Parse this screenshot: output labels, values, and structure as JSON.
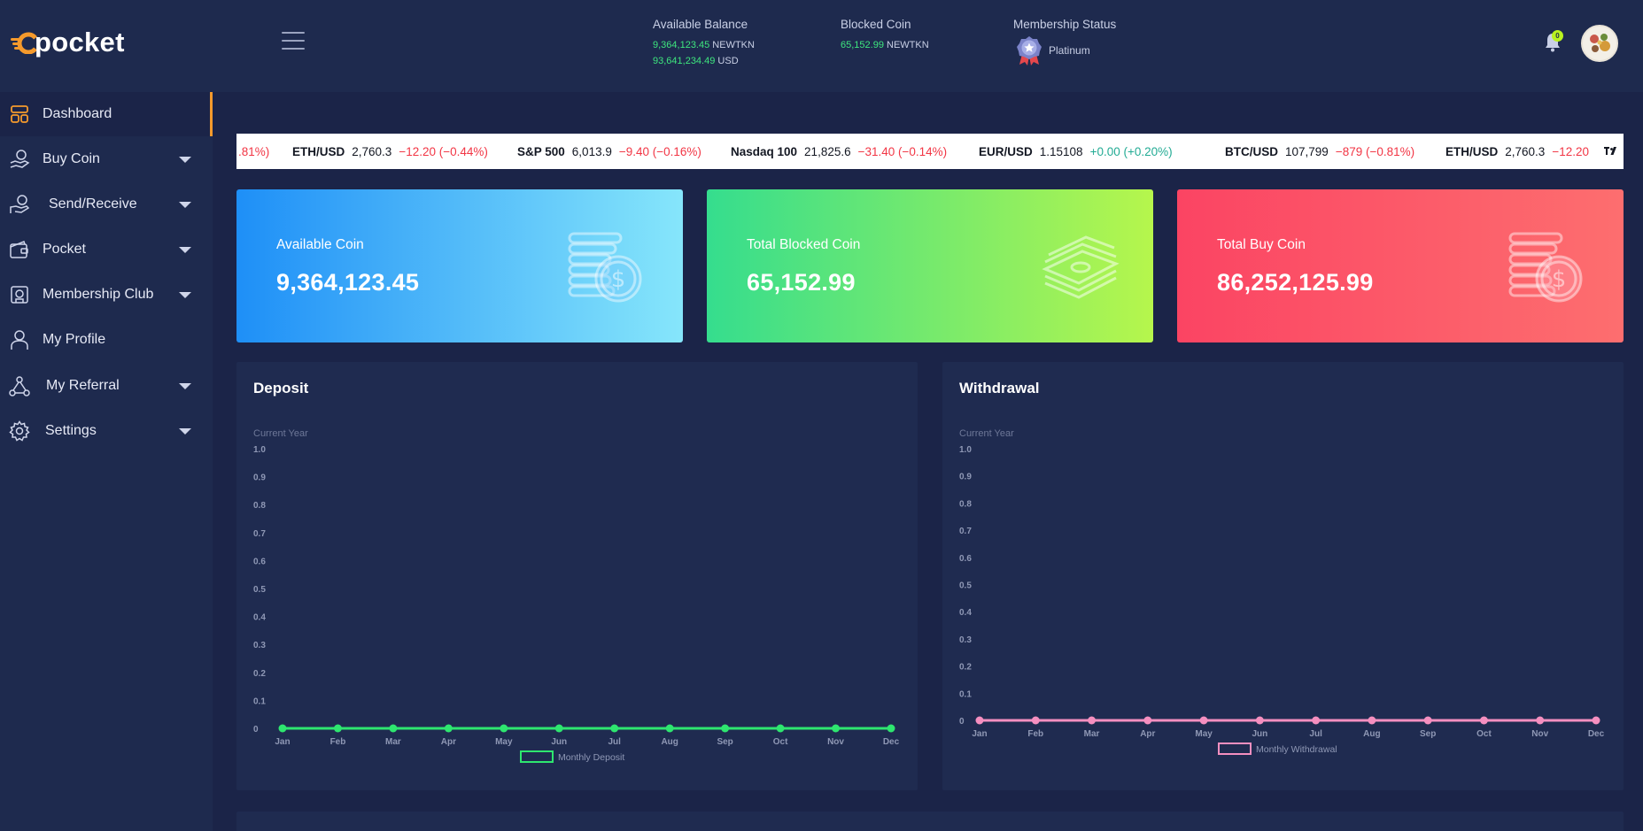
{
  "header": {
    "brand": "pocket",
    "available_balance": {
      "title": "Available Balance",
      "line1_value": "9,364,123.45",
      "line1_unit": "NEWTKN",
      "line2_value": "93,641,234.49",
      "line2_unit": "USD"
    },
    "blocked_coin": {
      "title": "Blocked Coin",
      "value": "65,152.99",
      "unit": "NEWTKN"
    },
    "membership": {
      "title": "Membership Status",
      "level": "Platinum"
    },
    "notification_count": "0"
  },
  "sidebar": {
    "items": [
      {
        "label": "Dashboard",
        "icon": "dashboard-icon",
        "has_caret": false,
        "active": true
      },
      {
        "label": "Buy Coin",
        "icon": "buy-coin-icon",
        "has_caret": true
      },
      {
        "label": "Send/Receive",
        "icon": "send-receive-icon",
        "has_caret": true
      },
      {
        "label": "Pocket",
        "icon": "wallet-icon",
        "has_caret": true
      },
      {
        "label": "Membership Club",
        "icon": "membership-icon",
        "has_caret": true
      },
      {
        "label": "My Profile",
        "icon": "user-icon",
        "has_caret": false
      },
      {
        "label": "My Referral",
        "icon": "referral-icon",
        "has_caret": true
      },
      {
        "label": "Settings",
        "icon": "settings-icon",
        "has_caret": true
      }
    ]
  },
  "ticker": {
    "items": [
      {
        "symbol": "",
        "price": "",
        "change": ".81%)",
        "direction": "neg"
      },
      {
        "symbol": "ETH/USD",
        "price": "2,760.3",
        "change": "−12.20 (−0.44%)",
        "direction": "neg"
      },
      {
        "symbol": "S&P 500",
        "price": "6,013.9",
        "change": "−9.40 (−0.16%)",
        "direction": "neg"
      },
      {
        "symbol": "Nasdaq 100",
        "price": "21,825.6",
        "change": "−31.40 (−0.14%)",
        "direction": "neg"
      },
      {
        "symbol": "EUR/USD",
        "price": "1.15108",
        "change": "+0.00 (+0.20%)",
        "direction": "pos"
      },
      {
        "symbol": "BTC/USD",
        "price": "107,799",
        "change": "−879 (−0.81%)",
        "direction": "neg"
      },
      {
        "symbol": "ETH/USD",
        "price": "2,760.3",
        "change": "−12.20",
        "direction": "neg"
      }
    ]
  },
  "cards": [
    {
      "title": "Available Coin",
      "value": "9,364,123.45",
      "icon": "coin-stack-icon"
    },
    {
      "title": "Total Blocked Coin",
      "value": "65,152.99",
      "icon": "cash-stack-icon"
    },
    {
      "title": "Total Buy Coin",
      "value": "86,252,125.99",
      "icon": "coin-stack-icon"
    }
  ],
  "colors": {
    "accent": "#f59a2c",
    "deposit_line": "#2ee66f",
    "withdrawal_line": "#f58fc0"
  },
  "chart_data": [
    {
      "type": "line",
      "panel_title": "Deposit",
      "title": "Current Year",
      "categories": [
        "Jan",
        "Feb",
        "Mar",
        "Apr",
        "May",
        "Jun",
        "Jul",
        "Aug",
        "Sep",
        "Oct",
        "Nov",
        "Dec"
      ],
      "series": [
        {
          "name": "Monthly Deposit",
          "values": [
            0,
            0,
            0,
            0,
            0,
            0,
            0,
            0,
            0,
            0,
            0,
            0
          ]
        }
      ],
      "yticks": [
        "0",
        "0.1",
        "0.2",
        "0.3",
        "0.4",
        "0.5",
        "0.6",
        "0.7",
        "0.8",
        "0.9",
        "1.0"
      ],
      "ylim": [
        0,
        1
      ],
      "legend": "bottom",
      "grid": false
    },
    {
      "type": "line",
      "panel_title": "Withdrawal",
      "title": "Current Year",
      "categories": [
        "Jan",
        "Feb",
        "Mar",
        "Apr",
        "May",
        "Jun",
        "Jul",
        "Aug",
        "Sep",
        "Oct",
        "Nov",
        "Dec"
      ],
      "series": [
        {
          "name": "Monthly Withdrawal",
          "values": [
            0,
            0,
            0,
            0,
            0,
            0,
            0,
            0,
            0,
            0,
            0,
            0
          ]
        }
      ],
      "yticks": [
        "0",
        "0.1",
        "0.2",
        "0.3",
        "0.4",
        "0.5",
        "0.6",
        "0.7",
        "0.8",
        "0.9",
        "1.0"
      ],
      "ylim": [
        0,
        1
      ],
      "legend": "bottom",
      "grid": false
    }
  ]
}
